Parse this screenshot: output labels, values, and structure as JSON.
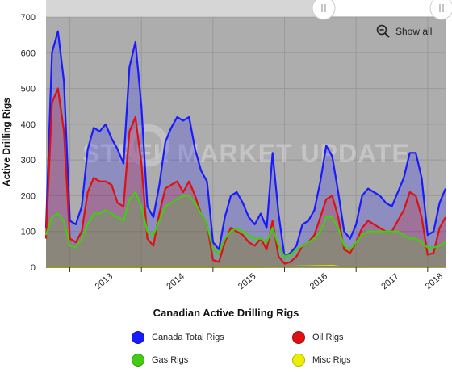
{
  "chart_data": {
    "type": "area",
    "title": "",
    "xlabel": "Canadian Active Drilling Rigs",
    "ylabel": "Active Drilling Rigs",
    "ylim": [
      0,
      700
    ],
    "y_ticks": [
      "0",
      "100",
      "200",
      "300",
      "400",
      "500",
      "600",
      "700"
    ],
    "x_ticks": [
      "2013",
      "2014",
      "2015",
      "2016",
      "2017",
      "2018"
    ],
    "xlim": [
      "2012-09",
      "2018-04"
    ],
    "grid": true,
    "legend_position": "bottom",
    "watermark": "STEEL MARKET UPDATE",
    "series": [
      {
        "name": "Canada Total Rigs",
        "color": "#1a1aff",
        "x": [
          "2012-09",
          "2012-10",
          "2012-11",
          "2012-12",
          "2013-01",
          "2013-02",
          "2013-03",
          "2013-04",
          "2013-05",
          "2013-06",
          "2013-07",
          "2013-08",
          "2013-09",
          "2013-10",
          "2013-11",
          "2013-12",
          "2014-01",
          "2014-02",
          "2014-03",
          "2014-04",
          "2014-05",
          "2014-06",
          "2014-07",
          "2014-08",
          "2014-09",
          "2014-10",
          "2014-11",
          "2014-12",
          "2015-01",
          "2015-02",
          "2015-03",
          "2015-04",
          "2015-05",
          "2015-06",
          "2015-07",
          "2015-08",
          "2015-09",
          "2015-10",
          "2015-11",
          "2015-12",
          "2016-01",
          "2016-02",
          "2016-03",
          "2016-04",
          "2016-05",
          "2016-06",
          "2016-07",
          "2016-08",
          "2016-09",
          "2016-10",
          "2016-11",
          "2016-12",
          "2017-01",
          "2017-02",
          "2017-03",
          "2017-04",
          "2017-05",
          "2017-06",
          "2017-07",
          "2017-08",
          "2017-09",
          "2017-10",
          "2017-11",
          "2017-12",
          "2018-01",
          "2018-02",
          "2018-03",
          "2018-04"
        ],
        "values": [
          110,
          600,
          660,
          520,
          130,
          120,
          170,
          330,
          390,
          380,
          400,
          360,
          330,
          290,
          560,
          630,
          450,
          170,
          140,
          230,
          350,
          390,
          420,
          410,
          420,
          330,
          270,
          240,
          70,
          50,
          140,
          200,
          210,
          180,
          140,
          120,
          150,
          110,
          320,
          150,
          30,
          40,
          60,
          120,
          130,
          160,
          240,
          340,
          310,
          210,
          100,
          80,
          120,
          200,
          220,
          210,
          200,
          180,
          170,
          210,
          250,
          320,
          320,
          250,
          90,
          100,
          180,
          220
        ]
      },
      {
        "name": "Oil Rigs",
        "color": "#dd1111",
        "x": [
          "2012-09",
          "2012-10",
          "2012-11",
          "2012-12",
          "2013-01",
          "2013-02",
          "2013-03",
          "2013-04",
          "2013-05",
          "2013-06",
          "2013-07",
          "2013-08",
          "2013-09",
          "2013-10",
          "2013-11",
          "2013-12",
          "2014-01",
          "2014-02",
          "2014-03",
          "2014-04",
          "2014-05",
          "2014-06",
          "2014-07",
          "2014-08",
          "2014-09",
          "2014-10",
          "2014-11",
          "2014-12",
          "2015-01",
          "2015-02",
          "2015-03",
          "2015-04",
          "2015-05",
          "2015-06",
          "2015-07",
          "2015-08",
          "2015-09",
          "2015-10",
          "2015-11",
          "2015-12",
          "2016-01",
          "2016-02",
          "2016-03",
          "2016-04",
          "2016-05",
          "2016-06",
          "2016-07",
          "2016-08",
          "2016-09",
          "2016-10",
          "2016-11",
          "2016-12",
          "2017-01",
          "2017-02",
          "2017-03",
          "2017-04",
          "2017-05",
          "2017-06",
          "2017-07",
          "2017-08",
          "2017-09",
          "2017-10",
          "2017-11",
          "2017-12",
          "2018-01",
          "2018-02",
          "2018-03",
          "2018-04"
        ],
        "values": [
          80,
          460,
          500,
          380,
          80,
          70,
          100,
          210,
          250,
          240,
          240,
          230,
          180,
          170,
          380,
          420,
          290,
          80,
          60,
          150,
          220,
          230,
          240,
          210,
          240,
          200,
          150,
          120,
          20,
          15,
          70,
          110,
          100,
          90,
          70,
          60,
          80,
          50,
          130,
          30,
          10,
          15,
          30,
          60,
          70,
          90,
          140,
          190,
          200,
          140,
          50,
          40,
          70,
          110,
          130,
          120,
          110,
          100,
          100,
          130,
          160,
          210,
          200,
          140,
          35,
          40,
          110,
          140
        ]
      },
      {
        "name": "Gas Rigs",
        "color": "#44cc11",
        "x": [
          "2012-09",
          "2012-10",
          "2012-11",
          "2012-12",
          "2013-01",
          "2013-02",
          "2013-03",
          "2013-04",
          "2013-05",
          "2013-06",
          "2013-07",
          "2013-08",
          "2013-09",
          "2013-10",
          "2013-11",
          "2013-12",
          "2014-01",
          "2014-02",
          "2014-03",
          "2014-04",
          "2014-05",
          "2014-06",
          "2014-07",
          "2014-08",
          "2014-09",
          "2014-10",
          "2014-11",
          "2014-12",
          "2015-01",
          "2015-02",
          "2015-03",
          "2015-04",
          "2015-05",
          "2015-06",
          "2015-07",
          "2015-08",
          "2015-09",
          "2015-10",
          "2015-11",
          "2015-12",
          "2016-01",
          "2016-02",
          "2016-03",
          "2016-04",
          "2016-05",
          "2016-06",
          "2016-07",
          "2016-08",
          "2016-09",
          "2016-10",
          "2016-11",
          "2016-12",
          "2017-01",
          "2017-02",
          "2017-03",
          "2017-04",
          "2017-05",
          "2017-06",
          "2017-07",
          "2017-08",
          "2017-09",
          "2017-10",
          "2017-11",
          "2017-12",
          "2018-01",
          "2018-02",
          "2018-03",
          "2018-04"
        ],
        "values": [
          90,
          140,
          150,
          130,
          60,
          55,
          80,
          120,
          150,
          150,
          160,
          150,
          140,
          130,
          190,
          210,
          170,
          100,
          90,
          130,
          170,
          180,
          190,
          200,
          200,
          180,
          150,
          120,
          50,
          40,
          80,
          100,
          110,
          100,
          90,
          80,
          80,
          70,
          110,
          60,
          30,
          35,
          50,
          60,
          70,
          80,
          100,
          140,
          140,
          110,
          60,
          50,
          70,
          90,
          100,
          100,
          100,
          100,
          100,
          100,
          90,
          80,
          80,
          70,
          55,
          55,
          60,
          70
        ]
      },
      {
        "name": "Misc Rigs",
        "color": "#eeee00",
        "x": [
          "2012-09",
          "2013-09",
          "2014-09",
          "2015-09",
          "2016-09",
          "2016-11",
          "2017-09",
          "2018-04"
        ],
        "values": [
          1,
          1,
          1,
          1,
          4,
          1,
          2,
          2
        ]
      }
    ]
  },
  "ui": {
    "show_all_label": "Show all",
    "show_all_icon": "zoom-out-icon",
    "scroll_handle_icon": "grip-lines-icon"
  }
}
